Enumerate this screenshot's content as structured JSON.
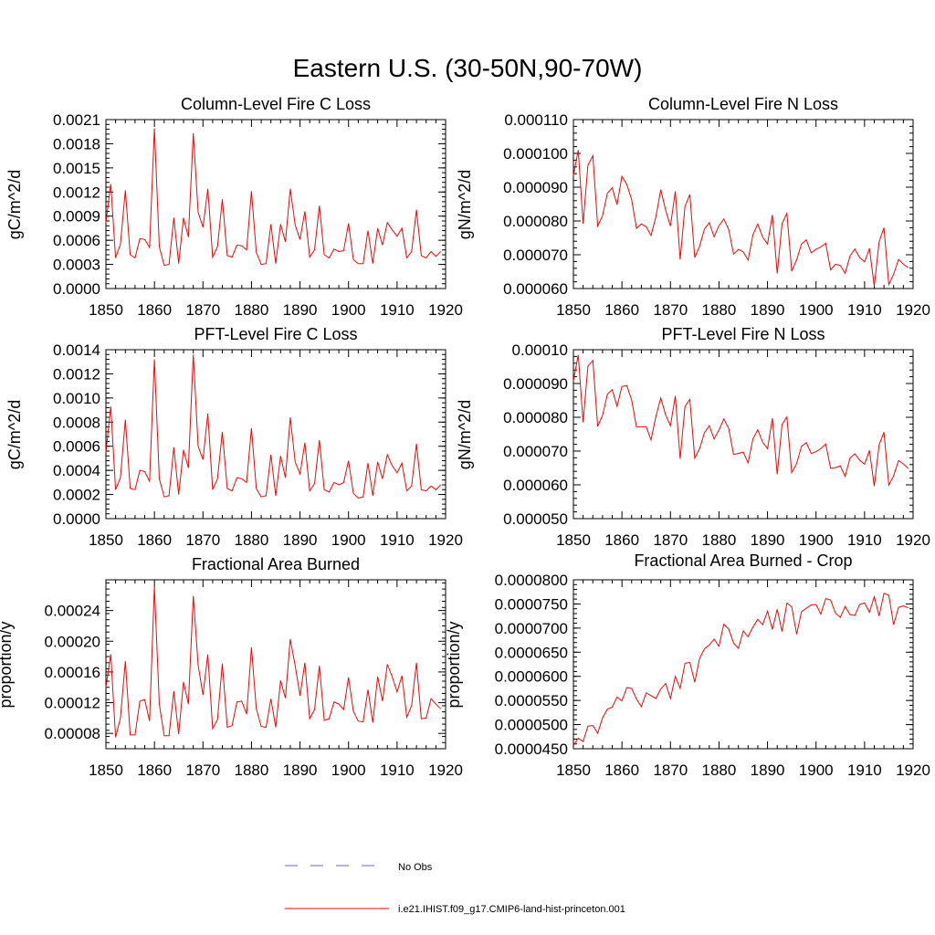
{
  "figure_title": "Eastern U.S. (30-50N,90-70W)",
  "legend": {
    "obs_label": "No Obs",
    "model_label": "i.e21.IHIST.f09_g17.CMIP6-land-hist-princeton.001",
    "obs_color": "#6a6acd",
    "model_color": "#ff0000"
  },
  "chart_data": [
    {
      "type": "line",
      "title": "Column-Level Fire C Loss",
      "ylabel": "gC/m^2/d",
      "xlim": [
        1850,
        1920
      ],
      "ylim": [
        0,
        0.0021
      ],
      "xticks": [
        "1850",
        "1860",
        "1870",
        "1880",
        "1890",
        "1900",
        "1910",
        "1920"
      ],
      "yticks": [
        "0.0000",
        "0.0003",
        "0.0006",
        "0.0009",
        "0.0012",
        "0.0015",
        "0.0018",
        "0.0021"
      ],
      "x_start": 1850,
      "values": [
        0.00082,
        0.0013,
        0.00038,
        0.00055,
        0.00122,
        0.00042,
        0.00038,
        0.00062,
        0.00061,
        0.00051,
        0.00199,
        0.00052,
        0.00029,
        0.0003,
        0.00088,
        0.00031,
        0.00088,
        0.00064,
        0.00193,
        0.00095,
        0.00076,
        0.00124,
        0.00039,
        0.00052,
        0.00111,
        0.00041,
        0.00039,
        0.00054,
        0.00053,
        0.00048,
        0.00121,
        0.00045,
        0.0003,
        0.00031,
        0.0008,
        0.00031,
        0.0008,
        0.00058,
        0.00124,
        0.00079,
        0.00061,
        0.00096,
        0.00039,
        0.00048,
        0.00103,
        0.00042,
        0.00038,
        0.00049,
        0.00046,
        0.00047,
        0.00081,
        0.00036,
        0.00031,
        0.00031,
        0.00072,
        0.00031,
        0.00075,
        0.00054,
        0.00082,
        0.00073,
        0.00065,
        0.00075,
        0.00038,
        0.00046,
        0.00098,
        0.00041,
        0.00038,
        0.00046,
        0.0004,
        0.00046
      ]
    },
    {
      "type": "line",
      "title": "Column-Level Fire N Loss",
      "ylabel": "gN/m^2/d",
      "xlim": [
        1850,
        1920
      ],
      "ylim": [
        6e-05,
        0.00011
      ],
      "xticks": [
        "1850",
        "1860",
        "1870",
        "1880",
        "1890",
        "1900",
        "1910",
        "1920"
      ],
      "yticks": [
        "0.000060",
        "0.000070",
        "0.000080",
        "0.000090",
        "0.000100",
        "0.000110"
      ],
      "x_start": 1850,
      "values": [
        9.35e-05,
        0.000101,
        7.92e-05,
        9.65e-05,
        9.93e-05,
        7.85e-05,
        8.15e-05,
        8.82e-05,
        8.98e-05,
        8.48e-05,
        9.32e-05,
        9.08e-05,
        8.63e-05,
        7.78e-05,
        7.91e-05,
        7.83e-05,
        7.57e-05,
        8.12e-05,
        8.93e-05,
        8.32e-05,
        7.85e-05,
        8.88e-05,
        6.86e-05,
        8.43e-05,
        8.78e-05,
        6.92e-05,
        7.25e-05,
        7.76e-05,
        7.95e-05,
        7.53e-05,
        7.86e-05,
        8.06e-05,
        7.75e-05,
        7.02e-05,
        7.16e-05,
        7.08e-05,
        6.84e-05,
        7.59e-05,
        7.91e-05,
        7.52e-05,
        7.32e-05,
        8.18e-05,
        6.45e-05,
        7.92e-05,
        8.23e-05,
        6.51e-05,
        6.85e-05,
        7.32e-05,
        7.44e-05,
        7.06e-05,
        7.16e-05,
        7.23e-05,
        7.34e-05,
        6.55e-05,
        6.72e-05,
        6.68e-05,
        6.45e-05,
        6.96e-05,
        7.17e-05,
        6.92e-05,
        6.79e-05,
        7.19e-05,
        6.07e-05,
        7.38e-05,
        7.8e-05,
        6.12e-05,
        6.42e-05,
        6.86e-05,
        6.72e-05,
        6.62e-05
      ]
    },
    {
      "type": "line",
      "title": "PFT-Level Fire C Loss",
      "ylabel": "gC/m^2/d",
      "xlim": [
        1850,
        1920
      ],
      "ylim": [
        0,
        0.0014
      ],
      "xticks": [
        "1850",
        "1860",
        "1870",
        "1880",
        "1890",
        "1900",
        "1910",
        "1920"
      ],
      "yticks": [
        "0.0000",
        "0.0002",
        "0.0004",
        "0.0006",
        "0.0008",
        "0.0010",
        "0.0012",
        "0.0014"
      ],
      "x_start": 1850,
      "values": [
        0.00055,
        0.00093,
        0.00024,
        0.00034,
        0.00082,
        0.00025,
        0.00024,
        0.0004,
        0.00039,
        0.00031,
        0.00132,
        0.00033,
        0.00018,
        0.00019,
        0.00059,
        0.0002,
        0.00057,
        0.00042,
        0.00136,
        0.0006,
        0.00049,
        0.00087,
        0.00024,
        0.00033,
        0.00072,
        0.00025,
        0.00023,
        0.00034,
        0.00033,
        0.0003,
        0.00075,
        0.00025,
        0.00018,
        0.00019,
        0.00053,
        0.00019,
        0.00052,
        0.00034,
        0.00084,
        0.00047,
        0.00037,
        0.00063,
        0.00023,
        0.00029,
        0.00065,
        0.00024,
        0.00022,
        0.0003,
        0.00028,
        0.0003,
        0.00048,
        0.00021,
        0.00017,
        0.00018,
        0.00046,
        0.00019,
        0.00047,
        0.00033,
        0.00053,
        0.00044,
        0.00038,
        0.00046,
        0.00023,
        0.00027,
        0.00062,
        0.00024,
        0.00023,
        0.00027,
        0.00024,
        0.00028
      ]
    },
    {
      "type": "line",
      "title": "PFT-Level Fire N Loss",
      "ylabel": "gN/m^2/d",
      "xlim": [
        1850,
        1920
      ],
      "ylim": [
        5e-05,
        0.0001
      ],
      "xticks": [
        "1850",
        "1860",
        "1870",
        "1880",
        "1890",
        "1900",
        "1910",
        "1920"
      ],
      "yticks": [
        "0.000050",
        "0.000060",
        "0.000070",
        "0.000080",
        "0.000090",
        "0.00010"
      ],
      "x_start": 1850,
      "values": [
        9.07e-05,
        9.85e-05,
        7.85e-05,
        9.52e-05,
        9.68e-05,
        7.73e-05,
        8.05e-05,
        8.68e-05,
        8.82e-05,
        8.32e-05,
        8.91e-05,
        8.94e-05,
        8.51e-05,
        7.71e-05,
        7.72e-05,
        7.72e-05,
        7.33e-05,
        8.02e-05,
        8.57e-05,
        8.07e-05,
        7.75e-05,
        8.63e-05,
        6.77e-05,
        8.32e-05,
        8.53e-05,
        6.79e-05,
        7.07e-05,
        7.54e-05,
        7.75e-05,
        7.36e-05,
        7.62e-05,
        7.95e-05,
        7.67e-05,
        6.9e-05,
        6.93e-05,
        6.97e-05,
        6.65e-05,
        7.36e-05,
        7.63e-05,
        7.26e-05,
        7.07e-05,
        7.97e-05,
        6.31e-05,
        7.78e-05,
        8.01e-05,
        6.36e-05,
        6.63e-05,
        7.14e-05,
        7.25e-05,
        6.93e-05,
        6.98e-05,
        7.07e-05,
        7.21e-05,
        6.49e-05,
        6.51e-05,
        6.56e-05,
        6.25e-05,
        6.79e-05,
        6.92e-05,
        6.73e-05,
        6.61e-05,
        7.02e-05,
        5.96e-05,
        7.18e-05,
        7.56e-05,
        5.99e-05,
        6.27e-05,
        6.72e-05,
        6.62e-05,
        6.48e-05
      ]
    },
    {
      "type": "line",
      "title": "Fractional Area Burned",
      "ylabel": "proportion/y",
      "xlim": [
        1850,
        1920
      ],
      "ylim": [
        6e-05,
        0.00028
      ],
      "xticks": [
        "1850",
        "1860",
        "1870",
        "1880",
        "1890",
        "1900",
        "1910",
        "1920"
      ],
      "yticks": [
        "0.00008",
        "0.00012",
        "0.00016",
        "0.00020",
        "0.00024"
      ],
      "ytick_values": [
        8e-05,
        0.00012,
        0.00016,
        0.0002,
        0.00024
      ],
      "x_start": 1850,
      "values": [
        0.00014,
        0.000183,
        7.5e-05,
        0.0001,
        0.000174,
        7.8e-05,
        7.8e-05,
        0.000122,
        0.000124,
        9.6e-05,
        0.000271,
        0.000118,
        7.7e-05,
        7.7e-05,
        0.000135,
        7.9e-05,
        0.000147,
        0.000118,
        0.000259,
        0.000169,
        0.00013,
        0.000183,
        8.6e-05,
        9.8e-05,
        0.000171,
        8.8e-05,
        9e-05,
        0.000121,
        0.000122,
        0.000105,
        0.000192,
        0.000112,
        8.9e-05,
        8.8e-05,
        0.000125,
        8.8e-05,
        0.000149,
        0.000126,
        0.000203,
        0.000168,
        0.000129,
        0.000172,
        9.9e-05,
        0.000111,
        0.000168,
        9.7e-05,
        9.9e-05,
        0.000121,
        0.000118,
        0.000111,
        0.000153,
        0.000109,
        9.6e-05,
        9.5e-05,
        0.000137,
        9.4e-05,
        0.000154,
        0.000122,
        0.00017,
        0.000154,
        0.000134,
        0.000155,
        0.000101,
        0.000116,
        0.000172,
        9.9e-05,
        0.0001,
        0.000125,
        0.000118,
        0.000112
      ]
    },
    {
      "type": "line",
      "title": "Fractional Area Burned - Crop",
      "ylabel": "proportion/y",
      "xlim": [
        1850,
        1920
      ],
      "ylim": [
        4.5e-05,
        8e-05
      ],
      "xticks": [
        "1850",
        "1860",
        "1870",
        "1880",
        "1890",
        "1900",
        "1910",
        "1920"
      ],
      "yticks": [
        "0.0000450",
        "0.0000500",
        "0.0000550",
        "0.0000600",
        "0.0000650",
        "0.0000700",
        "0.0000750",
        "0.0000800"
      ],
      "x_start": 1850,
      "values": [
        4.57e-05,
        4.72e-05,
        4.65e-05,
        4.97e-05,
        4.98e-05,
        4.82e-05,
        5.14e-05,
        5.32e-05,
        5.36e-05,
        5.57e-05,
        5.49e-05,
        5.77e-05,
        5.75e-05,
        5.53e-05,
        5.37e-05,
        5.66e-05,
        5.6e-05,
        5.54e-05,
        5.74e-05,
        5.85e-05,
        5.54e-05,
        6e-05,
        5.75e-05,
        6.27e-05,
        6.29e-05,
        5.88e-05,
        6.37e-05,
        6.57e-05,
        6.65e-05,
        6.77e-05,
        6.62e-05,
        7.08e-05,
        6.98e-05,
        6.69e-05,
        6.58e-05,
        6.94e-05,
        6.82e-05,
        7.02e-05,
        7.18e-05,
        7.07e-05,
        7.35e-05,
        6.97e-05,
        7.39e-05,
        6.93e-05,
        7.52e-05,
        7.44e-05,
        6.87e-05,
        7.34e-05,
        7.41e-05,
        7.48e-05,
        7.49e-05,
        7.29e-05,
        7.61e-05,
        7.58e-05,
        7.31e-05,
        7.22e-05,
        7.45e-05,
        7.28e-05,
        7.26e-05,
        7.49e-05,
        7.52e-05,
        7.33e-05,
        7.65e-05,
        7.25e-05,
        7.72e-05,
        7.68e-05,
        7.07e-05,
        7.43e-05,
        7.46e-05,
        7.42e-05
      ]
    }
  ]
}
